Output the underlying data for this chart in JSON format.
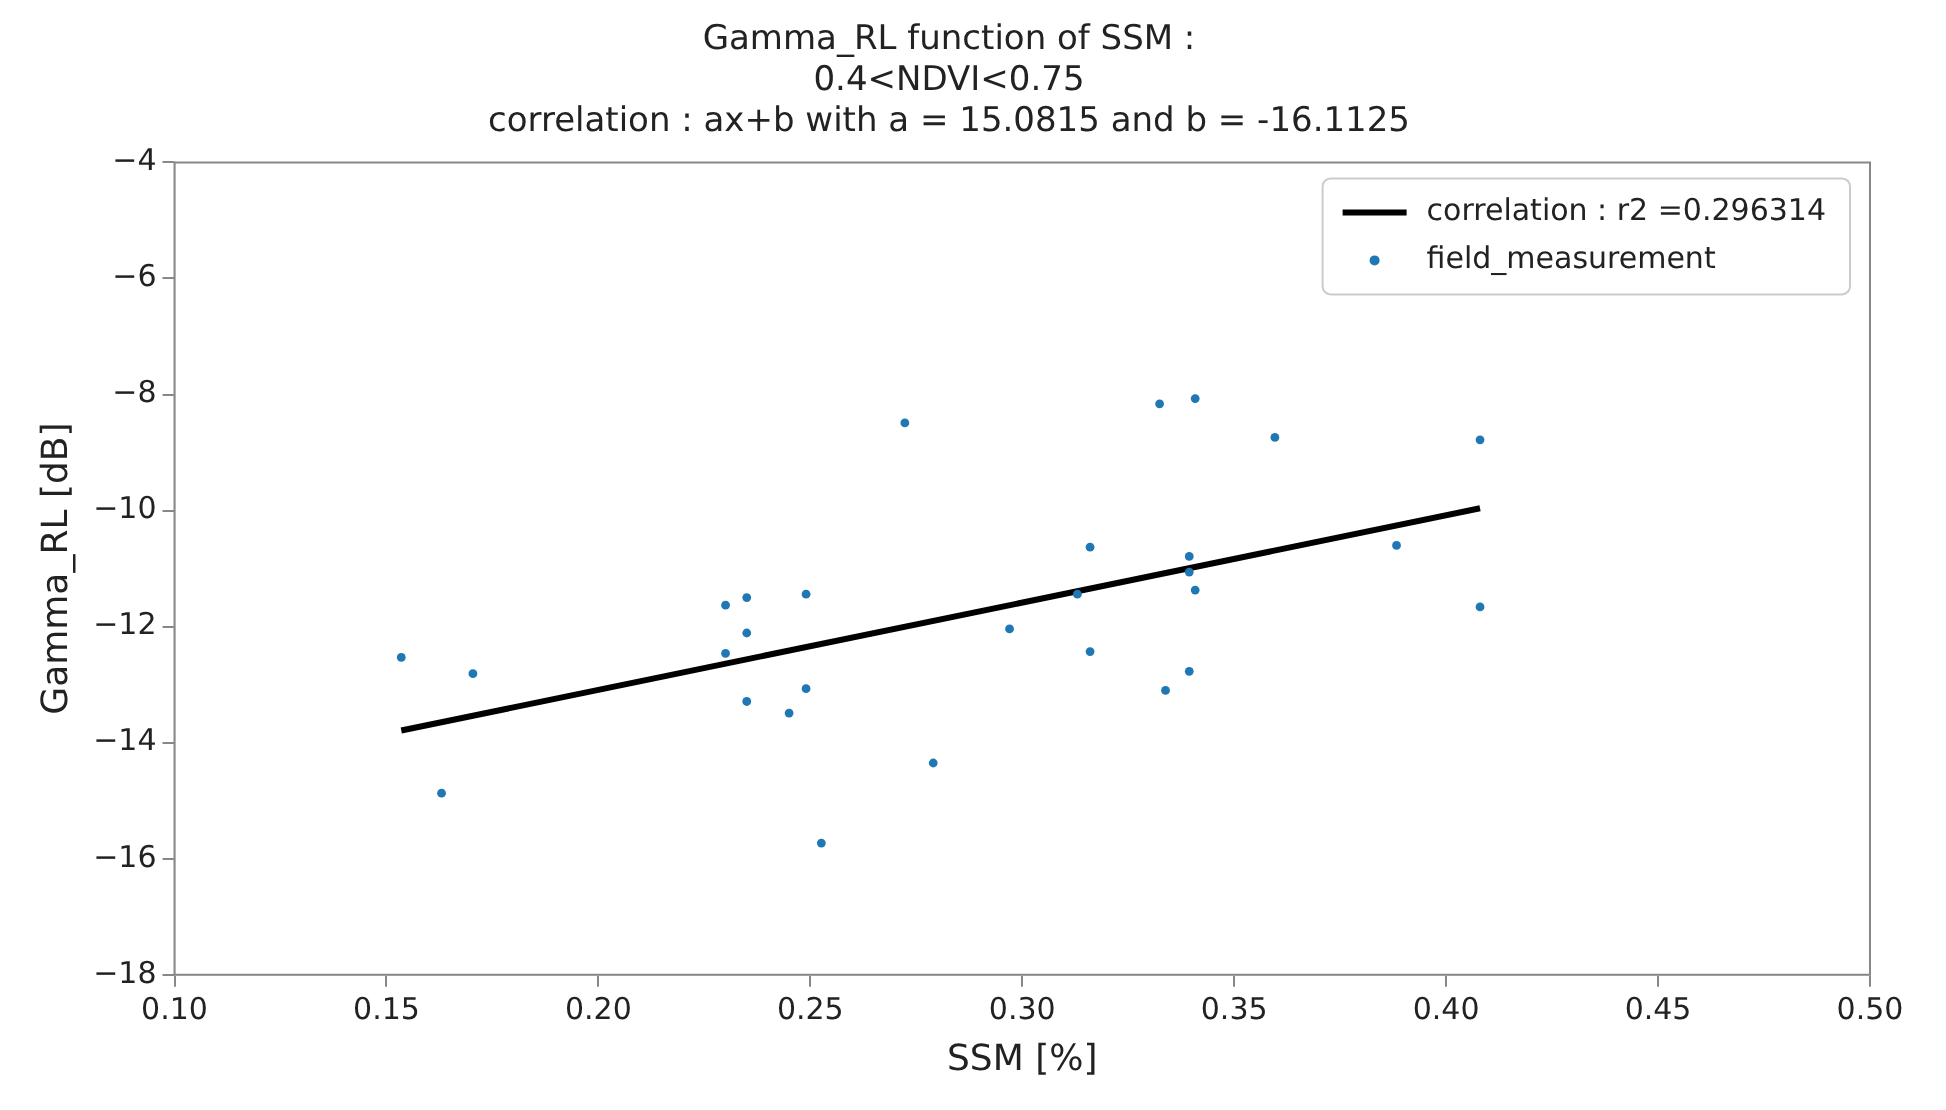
{
  "chart_data": {
    "type": "scatter",
    "title": "Gamma_RL function of SSM :\n0.4<NDVI<0.75\ncorrelation : ax+b with a = 15.0815 and b = -16.1125",
    "xlabel": "SSM [%]",
    "ylabel": "Gamma_RL [dB]",
    "xlim": [
      0.1,
      0.5
    ],
    "xticks": [
      {
        "value": 0.1,
        "label": "0.10"
      },
      {
        "value": 0.15,
        "label": "0.15"
      },
      {
        "value": 0.2,
        "label": "0.20"
      },
      {
        "value": 0.25,
        "label": "0.25"
      },
      {
        "value": 0.3,
        "label": "0.30"
      },
      {
        "value": 0.35,
        "label": "0.35"
      },
      {
        "value": 0.4,
        "label": "0.40"
      },
      {
        "value": 0.45,
        "label": "0.45"
      },
      {
        "value": 0.5,
        "label": "0.50"
      }
    ],
    "ylim": [
      -18,
      -4
    ],
    "yticks": [
      -18,
      -16,
      -14,
      -12,
      -10,
      -8,
      -6,
      -4
    ],
    "grid": false,
    "legend": "top right",
    "series": [
      {
        "name": "correlation : r2 =0.296314",
        "type": "line",
        "color": "#000000",
        "marker": "none",
        "x": [
          0.1535,
          0.408
        ],
        "values": [
          -13.79,
          -9.96
        ]
      },
      {
        "name": "field_measurement",
        "type": "scatter",
        "color": "#1f77b4",
        "marker": "circle",
        "x": [
          0.1535,
          0.163,
          0.1704,
          0.23,
          0.23,
          0.235,
          0.235,
          0.235,
          0.249,
          0.249,
          0.245,
          0.2723,
          0.279,
          0.2526,
          0.297,
          0.316,
          0.316,
          0.313,
          0.3324,
          0.3408,
          0.3394,
          0.3394,
          0.3408,
          0.3394,
          0.3338,
          0.3596,
          0.3883,
          0.408,
          0.408
        ],
        "values": [
          -12.53,
          -14.87,
          -12.81,
          -11.63,
          -12.46,
          -11.5,
          -12.11,
          -13.29,
          -11.44,
          -13.07,
          -13.49,
          -8.49,
          -14.35,
          -15.73,
          -12.04,
          -10.63,
          -12.43,
          -11.44,
          -8.16,
          -8.07,
          -10.79,
          -11.06,
          -11.37,
          -12.77,
          -13.1,
          -8.74,
          -10.6,
          -8.78,
          -11.66
        ]
      }
    ]
  }
}
